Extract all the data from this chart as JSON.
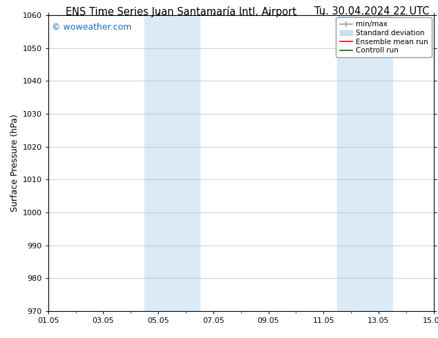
{
  "title_left": "ENS Time Series Juan Santamaría Intl. Airport",
  "title_right": "Tu. 30.04.2024 22 UTC",
  "ylabel": "Surface Pressure (hPa)",
  "xlabel_ticks": [
    "01.05",
    "03.05",
    "05.05",
    "07.05",
    "09.05",
    "11.05",
    "13.05",
    "15.05"
  ],
  "xlim": [
    0,
    14
  ],
  "ylim": [
    970,
    1060
  ],
  "yticks": [
    970,
    980,
    990,
    1000,
    1010,
    1020,
    1030,
    1040,
    1050,
    1060
  ],
  "xtick_positions": [
    0,
    2,
    4,
    6,
    8,
    10,
    12,
    14
  ],
  "shaded_bands": [
    {
      "x_start": 3.5,
      "x_end": 5.5
    },
    {
      "x_start": 10.5,
      "x_end": 12.5
    }
  ],
  "shaded_color": "#daeaf7",
  "background_color": "#ffffff",
  "plot_bg_color": "#ffffff",
  "watermark_text": "© woweather.com",
  "watermark_color": "#1a6abf",
  "legend_entries": [
    {
      "label": "min/max"
    },
    {
      "label": "Standard deviation"
    },
    {
      "label": "Ensemble mean run"
    },
    {
      "label": "Controll run"
    }
  ],
  "grid_color": "#bbbbbb",
  "title_fontsize": 10.5,
  "ylabel_fontsize": 9,
  "tick_fontsize": 8,
  "legend_fontsize": 7.5,
  "watermark_fontsize": 9
}
